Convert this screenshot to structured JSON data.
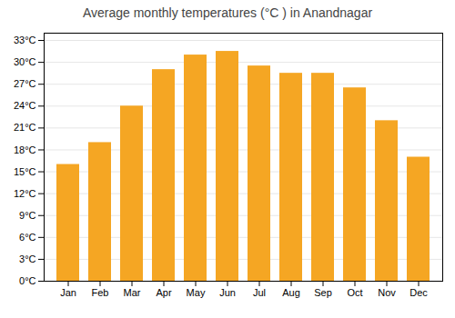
{
  "chart_data": {
    "type": "bar",
    "title": "Average monthly temperatures (°C ) in Anandnagar",
    "categories": [
      "Jan",
      "Feb",
      "Mar",
      "Apr",
      "May",
      "Jun",
      "Jul",
      "Aug",
      "Sep",
      "Oct",
      "Nov",
      "Dec"
    ],
    "values": [
      16,
      19,
      24,
      29,
      31,
      31.5,
      29.5,
      28.5,
      28.5,
      26.5,
      22,
      17
    ],
    "color": "#F5A623",
    "ylim": [
      0,
      34
    ],
    "yticks": [
      {
        "value": 0,
        "label": "0°C"
      },
      {
        "value": 3,
        "label": "3°C"
      },
      {
        "value": 6,
        "label": "6°C"
      },
      {
        "value": 9,
        "label": "9°C"
      },
      {
        "value": 12,
        "label": "12°C"
      },
      {
        "value": 15,
        "label": "15°C"
      },
      {
        "value": 18,
        "label": "18°C"
      },
      {
        "value": 21,
        "label": "21°C"
      },
      {
        "value": 24,
        "label": "24°C"
      },
      {
        "value": 27,
        "label": "27°C"
      },
      {
        "value": 30,
        "label": "30°C"
      },
      {
        "value": 33,
        "label": "33°C"
      }
    ],
    "grid": true
  }
}
